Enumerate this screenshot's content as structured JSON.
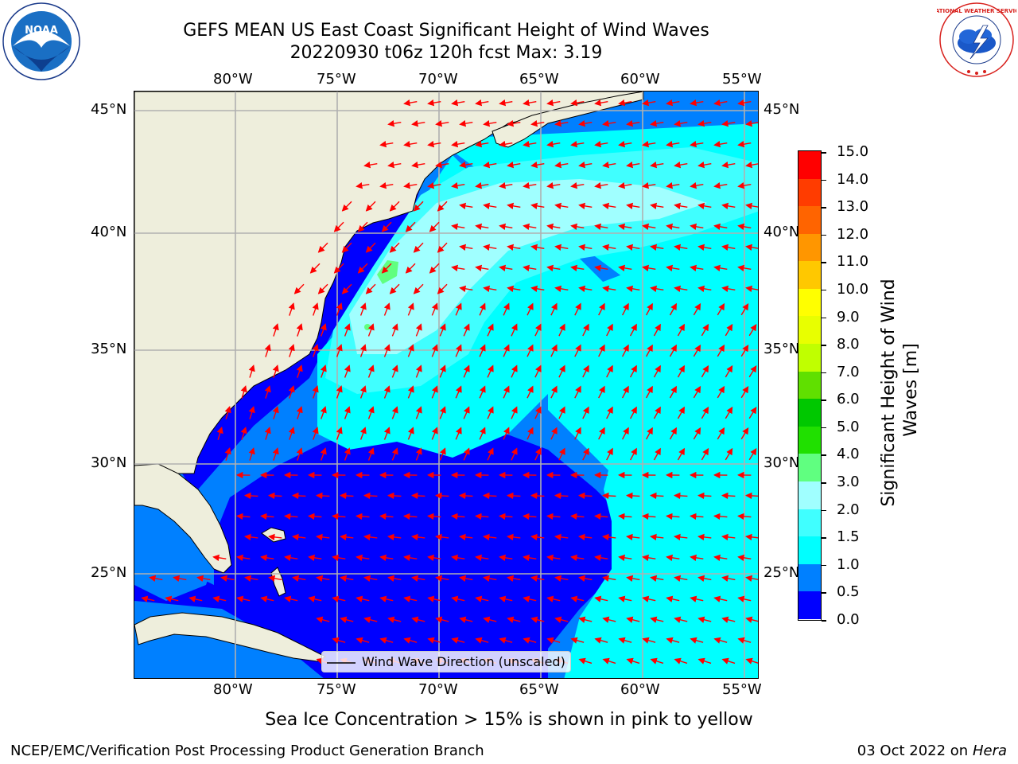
{
  "title_line1": "GEFS MEAN US East Coast Significant Height of Wind Waves",
  "title_line2": "20220930 t06z 120h fcst   Max: 3.19",
  "longitude_labels": [
    "80°W",
    "75°W",
    "70°W",
    "65°W",
    "60°W",
    "55°W"
  ],
  "latitude_labels": [
    "45°N",
    "40°N",
    "35°N",
    "30°N",
    "25°N"
  ],
  "legend_label": "Wind Wave Direction (unscaled)",
  "colorbar": {
    "title": "Significant Height of Wind Waves [m]",
    "tick_labels": [
      "0.0",
      "0.5",
      "1.0",
      "1.5",
      "2.0",
      "3.0",
      "4.0",
      "5.0",
      "6.0",
      "7.0",
      "8.0",
      "9.0",
      "10.0",
      "11.0",
      "12.0",
      "13.0",
      "14.0",
      "15.0"
    ],
    "colors": [
      "#0000ff",
      "#0080ff",
      "#00ffff",
      "#40ffff",
      "#a0ffff",
      "#60ff80",
      "#20e000",
      "#00c800",
      "#60e000",
      "#c0ff00",
      "#e8ff00",
      "#ffff00",
      "#ffc800",
      "#ff9600",
      "#ff6400",
      "#ff3c00",
      "#ff0000"
    ]
  },
  "footnote": "Sea Ice Concentration > 15% is shown in pink to yellow",
  "credit_left": "NCEP/EMC/Verification Post Processing Product Generation Branch",
  "credit_date": "03 Oct 2022 on ",
  "credit_host": "Hera",
  "logos": {
    "noaa": {
      "name": "noaa-logo",
      "text": "NOAA"
    },
    "nws": {
      "name": "nws-logo",
      "text": "NATIONAL WEATHER SERVICE"
    }
  },
  "colors": {
    "land": "#eeeedc",
    "arrow": "#ff0000",
    "grid": "#b0b0b0"
  }
}
